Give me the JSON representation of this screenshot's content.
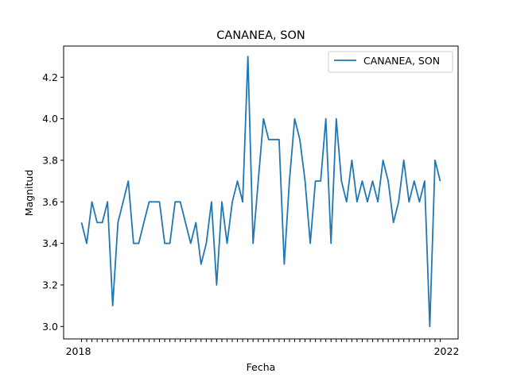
{
  "chart_data": {
    "type": "line",
    "title": "CANANEA, SON",
    "xlabel": "Fecha",
    "ylabel": "Magnitud",
    "ylim": [
      2.94,
      4.35
    ],
    "yticks": [
      "3.0",
      "3.2",
      "3.4",
      "3.6",
      "3.8",
      "4.0",
      "4.2"
    ],
    "ytick_values": [
      3.0,
      3.2,
      3.4,
      3.6,
      3.8,
      4.0,
      4.2
    ],
    "xtick_first_label": "2018",
    "xtick_last_label": "2022",
    "legend_position": "top-right",
    "grid": false,
    "series": [
      {
        "name": "CANANEA, SON",
        "color": "#1f77b4",
        "values": [
          3.5,
          3.4,
          3.6,
          3.5,
          3.5,
          3.6,
          3.1,
          3.5,
          3.6,
          3.7,
          3.4,
          3.4,
          3.5,
          3.6,
          3.6,
          3.6,
          3.4,
          3.4,
          3.6,
          3.6,
          3.5,
          3.4,
          3.5,
          3.3,
          3.4,
          3.6,
          3.2,
          3.6,
          3.4,
          3.6,
          3.7,
          3.6,
          4.3,
          3.4,
          3.7,
          4.0,
          3.9,
          3.9,
          3.9,
          3.3,
          3.7,
          4.0,
          3.9,
          3.7,
          3.4,
          3.7,
          3.7,
          4.0,
          3.4,
          4.0,
          3.7,
          3.6,
          3.8,
          3.6,
          3.7,
          3.6,
          3.7,
          3.6,
          3.8,
          3.7,
          3.5,
          3.6,
          3.8,
          3.6,
          3.7,
          3.6,
          3.7,
          3.0,
          3.8,
          3.7
        ]
      }
    ]
  }
}
